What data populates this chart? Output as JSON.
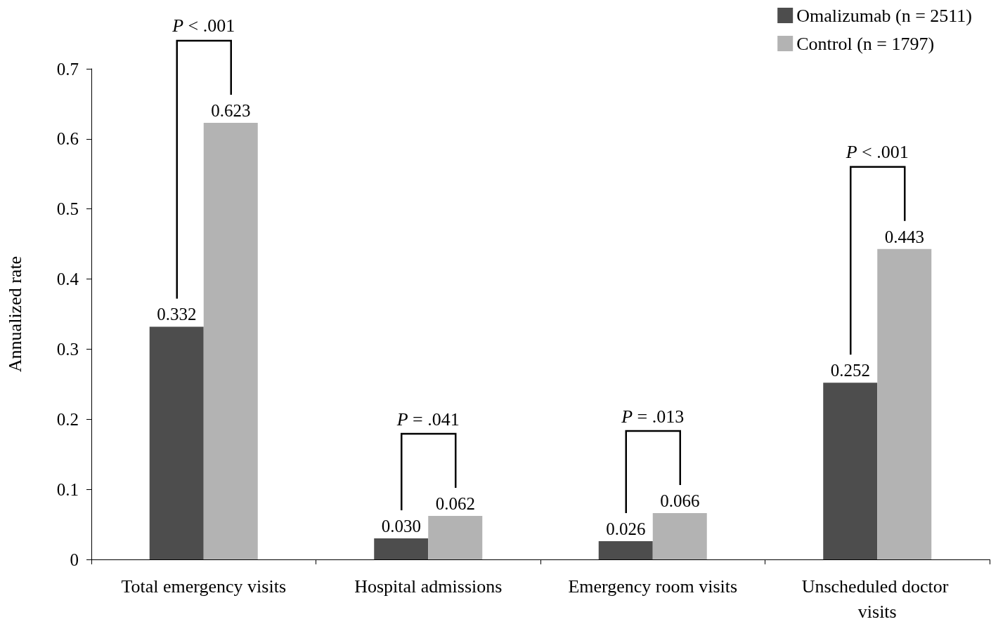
{
  "chart_data": {
    "type": "bar",
    "ylabel": "Annualized rate",
    "categories": [
      "Total emergency visits",
      "Hospital admissions",
      "Emergency room visits",
      "Unscheduled doctor visits"
    ],
    "series": [
      {
        "name": "Omalizumab (n = 2511)",
        "color": "#4d4d4d",
        "values": [
          0.332,
          0.03,
          0.026,
          0.252
        ],
        "value_labels": [
          "0.332",
          "0.030",
          "0.026",
          "0.252"
        ]
      },
      {
        "name": "Control (n = 1797)",
        "color": "#b3b3b3",
        "values": [
          0.623,
          0.062,
          0.066,
          0.443
        ],
        "value_labels": [
          "0.623",
          "0.062",
          "0.066",
          "0.443"
        ]
      }
    ],
    "ylim": [
      0,
      0.7
    ],
    "yticks": [
      0,
      0.1,
      0.2,
      0.3,
      0.4,
      0.5,
      0.6,
      0.7
    ],
    "grid": false,
    "legend": "top right",
    "annotations": [
      "P < .001",
      "P = .041",
      "P = .013",
      "P < .001"
    ]
  }
}
